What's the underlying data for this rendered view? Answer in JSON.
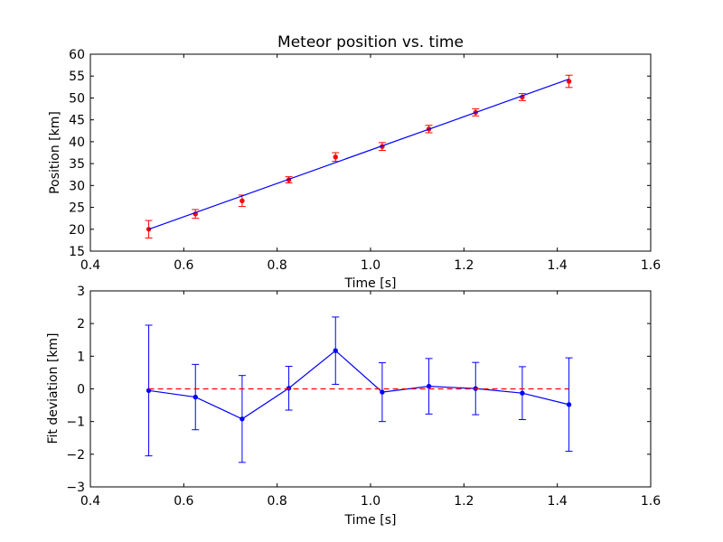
{
  "colors": {
    "fit_line": "#0000ff",
    "measurement": "#ff0000",
    "deviation": "#0000ff",
    "zero_line": "#ff0000",
    "axes": "#000000",
    "background": "#ffffff"
  },
  "chart_data": [
    {
      "type": "scatter",
      "title": "Meteor position vs. time",
      "xlabel": "Time [s]",
      "ylabel": "Position [km]",
      "xlim": [
        0.4,
        1.6
      ],
      "ylim": [
        15,
        60
      ],
      "xticks": [
        "0.4",
        "0.6",
        "0.8",
        "1.0",
        "1.2",
        "1.4",
        "1.6"
      ],
      "yticks": [
        "15",
        "20",
        "25",
        "30",
        "35",
        "40",
        "45",
        "50",
        "55",
        "60"
      ],
      "grid": false,
      "series": [
        {
          "kind": "errorbar-points",
          "color": "#ff0000",
          "x": [
            0.525,
            0.625,
            0.725,
            0.825,
            0.925,
            1.025,
            1.125,
            1.225,
            1.325,
            1.425
          ],
          "y": [
            20.0,
            23.5,
            26.5,
            31.3,
            36.5,
            38.9,
            42.9,
            46.7,
            50.2,
            53.8
          ],
          "yerr": [
            2.0,
            1.0,
            1.3,
            0.7,
            1.0,
            0.9,
            0.85,
            0.8,
            0.8,
            1.4
          ]
        },
        {
          "kind": "fit-line",
          "color": "#0000ff",
          "x": [
            0.525,
            1.425
          ],
          "y": [
            20.0,
            54.3
          ]
        }
      ]
    },
    {
      "type": "line",
      "title": "",
      "xlabel": "Time [s]",
      "ylabel": "Fit deviation [km]",
      "xlim": [
        0.4,
        1.6
      ],
      "ylim": [
        -3,
        3
      ],
      "xticks": [
        "0.4",
        "0.6",
        "0.8",
        "1.0",
        "1.2",
        "1.4",
        "1.6"
      ],
      "yticks": [
        "−3",
        "−2",
        "−1",
        "0",
        "1",
        "2",
        "3"
      ],
      "grid": false,
      "series": [
        {
          "kind": "errorbar-line",
          "color": "#0000ff",
          "x": [
            0.525,
            0.625,
            0.725,
            0.825,
            0.925,
            1.025,
            1.125,
            1.225,
            1.325,
            1.425
          ],
          "y": [
            -0.05,
            -0.25,
            -0.92,
            0.02,
            1.17,
            -0.1,
            0.08,
            0.01,
            -0.13,
            -0.48
          ],
          "yerr": [
            2.0,
            1.0,
            1.33,
            0.67,
            1.03,
            0.9,
            0.85,
            0.8,
            0.81,
            1.43
          ]
        },
        {
          "kind": "reference-dashed",
          "color": "#ff0000",
          "x": [
            0.525,
            1.425
          ],
          "y": [
            0,
            0
          ]
        }
      ]
    }
  ]
}
